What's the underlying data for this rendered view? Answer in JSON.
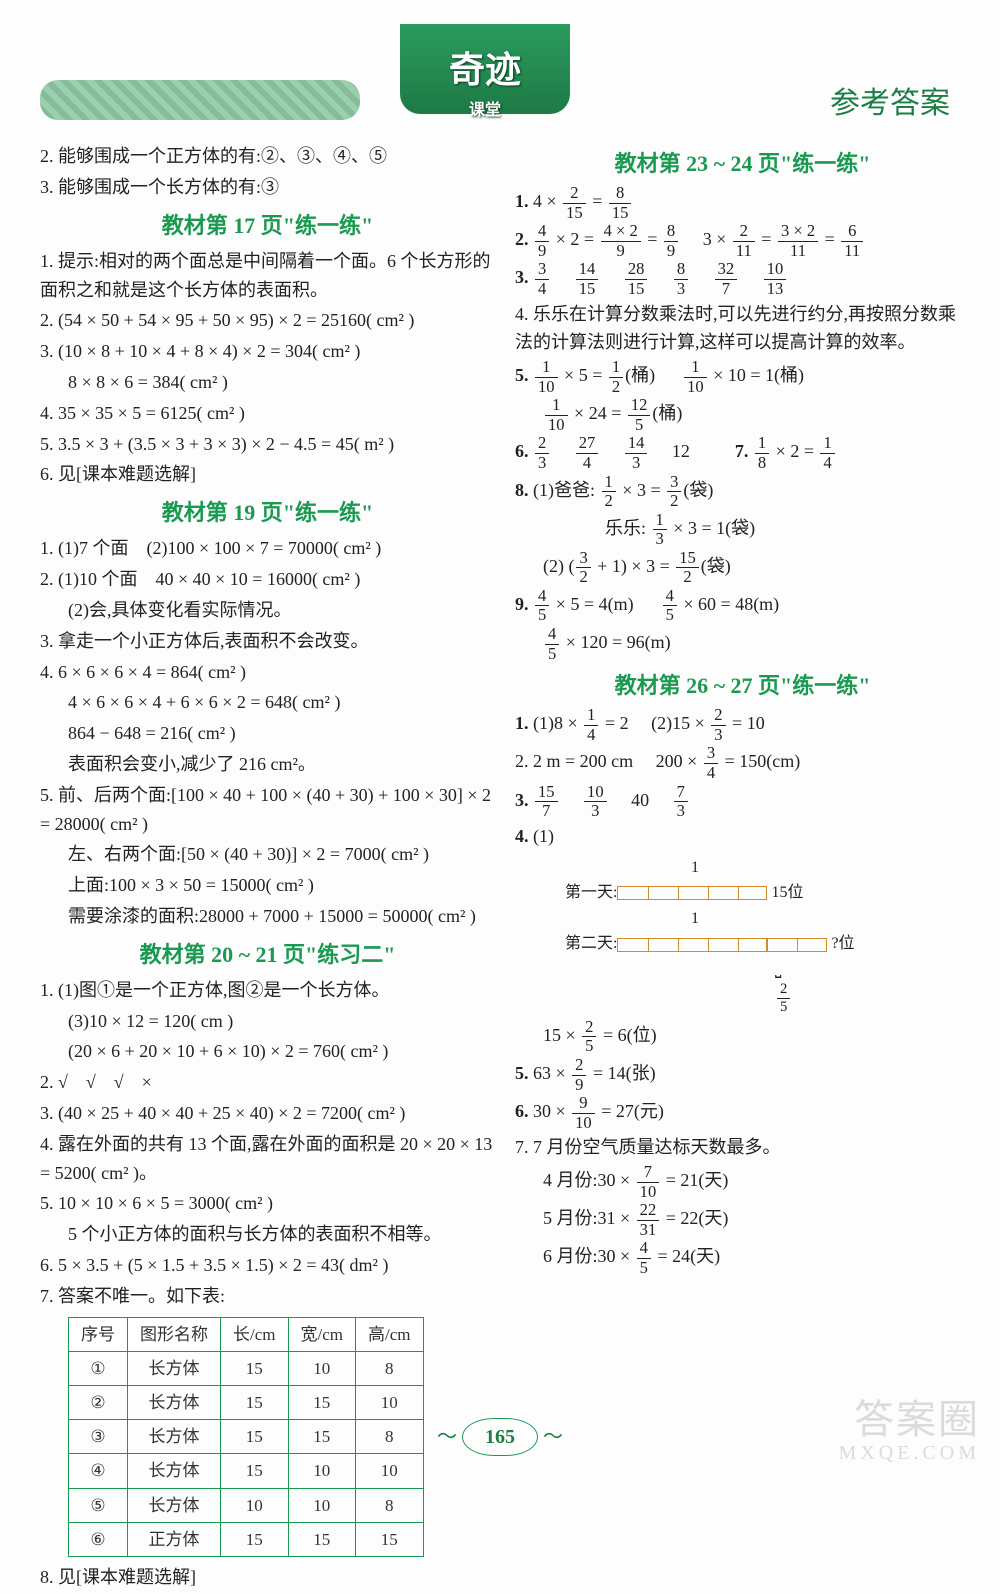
{
  "header": {
    "logo_top": "奇迹",
    "logo_sub": "课堂",
    "right": "参考答案"
  },
  "page_number": "165",
  "watermark": {
    "big": "答案圈",
    "small": "MXQE.COM"
  },
  "left": {
    "pre": [
      "2. 能够围成一个正方体的有:②、③、④、⑤",
      "3. 能够围成一个长方体的有:③"
    ],
    "sec17_title": "教材第 17 页\"练一练\"",
    "sec17": [
      "1. 提示:相对的两个面总是中间隔着一个面。6 个长方形的面积之和就是这个长方体的表面积。",
      "2. (54 × 50 + 54 × 95 + 50 × 95) × 2 = 25160( cm² )",
      "3. (10 × 8 + 10 × 4 + 8 × 4) × 2 = 304( cm² )",
      "   8 × 8 × 6 = 384( cm² )",
      "4. 35 × 35 × 5 = 6125( cm² )",
      "5. 3.5 × 3 + (3.5 × 3 + 3 × 3) × 2 − 4.5 = 45( m² )",
      "6. 见[课本难题选解]"
    ],
    "sec19_title": "教材第 19 页\"练一练\"",
    "sec19": [
      "1. (1)7 个面　(2)100 × 100 × 7 = 70000( cm² )",
      "2. (1)10 个面　40 × 40 × 10 = 16000( cm² )",
      "   (2)会,具体变化看实际情况。",
      "3. 拿走一个小正方体后,表面积不会改变。",
      "4. 6 × 6 × 6 × 4 = 864( cm² )",
      "   4 × 6 × 6 × 4 + 6 × 6 × 2 = 648( cm² )",
      "   864 − 648 = 216( cm² )",
      "   表面积会变小,减少了 216 cm²。",
      "5. 前、后两个面:[100 × 40 + 100 × (40 + 30) + 100 × 30] × 2 = 28000( cm² )",
      "   左、右两个面:[50 × (40 + 30)] × 2 = 7000( cm² )",
      "   上面:100 × 3 × 50 = 15000( cm² )",
      "   需要涂漆的面积:28000 + 7000 + 15000 = 50000( cm² )"
    ],
    "sec20_title": "教材第 20 ~ 21 页\"练习二\"",
    "sec20": [
      "1. (1)图①是一个正方体,图②是一个长方体。",
      "   (3)10 × 12 = 120( cm )",
      "      (20 × 6 + 20 × 10 + 6 × 10) × 2 = 760( cm² )",
      "2. √　√　√　×",
      "3. (40 × 25 + 40 × 40 + 25 × 40) × 2 = 7200( cm² )",
      "4. 露在外面的共有 13 个面,露在外面的面积是 20 × 20 × 13 = 5200( cm² )。",
      "5. 10 × 10 × 6 × 5 = 3000( cm² )",
      "   5 个小正方体的面积与长方体的表面积不相等。",
      "6. 5 × 3.5 + (5 × 1.5 + 3.5 × 1.5) × 2 = 43( dm² )",
      "7. 答案不唯一。如下表:"
    ],
    "table": {
      "headers": [
        "序号",
        "图形名称",
        "长/cm",
        "宽/cm",
        "高/cm"
      ],
      "rows": [
        [
          "①",
          "长方体",
          "15",
          "10",
          "8"
        ],
        [
          "②",
          "长方体",
          "15",
          "15",
          "10"
        ],
        [
          "③",
          "长方体",
          "15",
          "15",
          "8"
        ],
        [
          "④",
          "长方体",
          "15",
          "10",
          "10"
        ],
        [
          "⑤",
          "长方体",
          "10",
          "10",
          "8"
        ],
        [
          "⑥",
          "正方体",
          "15",
          "15",
          "15"
        ]
      ]
    },
    "after_table": "8. 见[课本难题选解]"
  },
  "right": {
    "sec23_title": "教材第 23 ~ 24 页\"练一练\"",
    "q1": {
      "a": "2",
      "b": "15",
      "r": "8",
      "rs": "15"
    },
    "q2a": {
      "a": "4",
      "b": "9",
      "m": "4 × 2",
      "mb": "9",
      "r": "8",
      "rb": "9"
    },
    "q2b": {
      "a": "2",
      "b": "11",
      "m": "3 × 2",
      "mb": "11",
      "r": "6",
      "rb": "11"
    },
    "q3": [
      "3",
      "4",
      "14",
      "15",
      "28",
      "15",
      "8",
      "3",
      "32",
      "7",
      "10",
      "13"
    ],
    "q4": "4. 乐乐在计算分数乘法时,可以先进行约分,再按照分数乘法的计算法则进行计算,这样可以提高计算的效率。",
    "q5a": {
      "a": "1",
      "b": "10",
      "n": "5",
      "r": "1",
      "rb": "2",
      "u": "(桶)"
    },
    "q5b": {
      "a": "1",
      "b": "10",
      "n": "10",
      "r": "1",
      "u": "(桶)"
    },
    "q5c": {
      "a": "1",
      "b": "10",
      "n": "24",
      "r": "12",
      "rb": "5",
      "u": "(桶)"
    },
    "q6": [
      "2",
      "3",
      "27",
      "4",
      "14",
      "3",
      "12"
    ],
    "q7": {
      "a": "1",
      "b": "8",
      "n": "2",
      "r": "1",
      "rb": "4"
    },
    "q8_1a": {
      "label": "(1)爸爸:",
      "a": "1",
      "b": "2",
      "n": "3",
      "r": "3",
      "rb": "2",
      "u": "(袋)"
    },
    "q8_1b": {
      "label": "乐乐:",
      "a": "1",
      "b": "3",
      "n": "3",
      "r": "1",
      "u": "(袋)"
    },
    "q8_2": {
      "a": "3",
      "b": "2",
      "r": "15",
      "rb": "2",
      "u": "(袋)"
    },
    "q9a": {
      "a": "4",
      "b": "5",
      "n": "5",
      "r": "4",
      "u": "(m)"
    },
    "q9b": {
      "a": "4",
      "b": "5",
      "n": "60",
      "r": "48",
      "u": "(m)"
    },
    "q9c": {
      "a": "4",
      "b": "5",
      "n": "120",
      "r": "96",
      "u": "(m)"
    },
    "sec26_title": "教材第 26 ~ 27 页\"练一练\"",
    "p1a": {
      "n": "8",
      "a": "1",
      "b": "4",
      "r": "2"
    },
    "p1b": {
      "n": "15",
      "a": "2",
      "b": "3",
      "r": "10"
    },
    "p2": {
      "pre": "2. 2 m = 200 cm",
      "n": "200",
      "a": "3",
      "b": "4",
      "r": "150",
      "u": "(cm)"
    },
    "p3": [
      "15",
      "7",
      "10",
      "3",
      "40",
      "7",
      "3"
    ],
    "p4_label1": "第一天:",
    "p4_right1": "15位",
    "p4_over1": "1",
    "p4_label2": "第二天:",
    "p4_right2": "?位",
    "p4_frac_a": "2",
    "p4_frac_b": "5",
    "p4_calc": {
      "n": "15",
      "a": "2",
      "b": "5",
      "r": "6",
      "u": "(位)"
    },
    "p5": {
      "n": "63",
      "a": "2",
      "b": "9",
      "r": "14",
      "u": "(张)"
    },
    "p6": {
      "n": "30",
      "a": "9",
      "b": "10",
      "r": "27",
      "u": "(元)"
    },
    "p7_head": "7. 7 月份空气质量达标天数最多。",
    "p7a": {
      "label": "4 月份:",
      "n": "30",
      "a": "7",
      "b": "10",
      "r": "21",
      "u": "(天)"
    },
    "p7b": {
      "label": "5 月份:",
      "n": "31",
      "a": "22",
      "b": "31",
      "r": "22",
      "u": "(天)"
    },
    "p7c": {
      "label": "6 月份:",
      "n": "30",
      "a": "4",
      "b": "5",
      "r": "24",
      "u": "(天)"
    }
  }
}
